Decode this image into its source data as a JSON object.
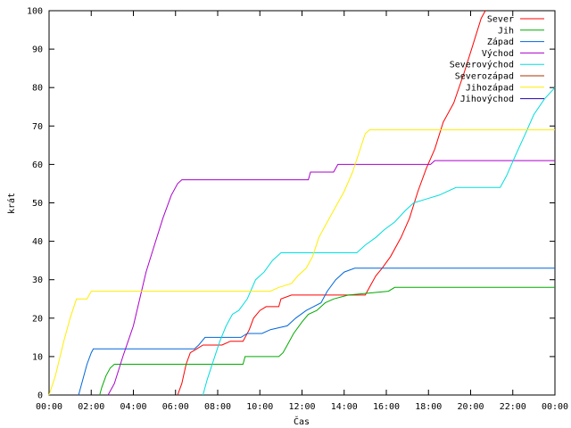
{
  "chart_data": {
    "type": "line",
    "xlabel": "Čas",
    "ylabel": "krát",
    "xlim": [
      0,
      24
    ],
    "ylim": [
      0,
      100
    ],
    "x_ticks": [
      {
        "value": 0,
        "label": "00:00"
      },
      {
        "value": 2,
        "label": "02:00"
      },
      {
        "value": 4,
        "label": "04:00"
      },
      {
        "value": 6,
        "label": "06:00"
      },
      {
        "value": 8,
        "label": "08:00"
      },
      {
        "value": 10,
        "label": "10:00"
      },
      {
        "value": 12,
        "label": "12:00"
      },
      {
        "value": 14,
        "label": "14:00"
      },
      {
        "value": 16,
        "label": "16:00"
      },
      {
        "value": 18,
        "label": "18:00"
      },
      {
        "value": 20,
        "label": "20:00"
      },
      {
        "value": 22,
        "label": "22:00"
      },
      {
        "value": 24,
        "label": "00:00"
      }
    ],
    "y_ticks": [
      0,
      10,
      20,
      30,
      40,
      50,
      60,
      70,
      80,
      90,
      100
    ],
    "grid": false,
    "legend_position": "top-right",
    "series": [
      {
        "name": "Sever",
        "color": "#ff0000",
        "points": [
          [
            6.1,
            0
          ],
          [
            6.3,
            3
          ],
          [
            6.5,
            8
          ],
          [
            6.7,
            11
          ],
          [
            7.0,
            12
          ],
          [
            7.3,
            13
          ],
          [
            8.2,
            13
          ],
          [
            8.6,
            14
          ],
          [
            9.2,
            14
          ],
          [
            9.5,
            17
          ],
          [
            9.7,
            20
          ],
          [
            10.0,
            22
          ],
          [
            10.3,
            23
          ],
          [
            10.9,
            23
          ],
          [
            11.0,
            25
          ],
          [
            11.5,
            26
          ],
          [
            15.0,
            26
          ],
          [
            15.2,
            28
          ],
          [
            15.5,
            31
          ],
          [
            15.8,
            33
          ],
          [
            16.2,
            36
          ],
          [
            16.7,
            41
          ],
          [
            17.1,
            46
          ],
          [
            17.5,
            53
          ],
          [
            17.9,
            59
          ],
          [
            18.3,
            64
          ],
          [
            18.7,
            71
          ],
          [
            19.2,
            76
          ],
          [
            19.7,
            84
          ],
          [
            20.1,
            91
          ],
          [
            20.5,
            98
          ],
          [
            20.7,
            100
          ]
        ]
      },
      {
        "name": "Jih",
        "color": "#00aa00",
        "points": [
          [
            2.4,
            0
          ],
          [
            2.5,
            2
          ],
          [
            2.7,
            5
          ],
          [
            2.9,
            7
          ],
          [
            3.1,
            8
          ],
          [
            9.2,
            8
          ],
          [
            9.3,
            10
          ],
          [
            10.9,
            10
          ],
          [
            11.1,
            11
          ],
          [
            11.3,
            13
          ],
          [
            11.6,
            16
          ],
          [
            12.0,
            19
          ],
          [
            12.3,
            21
          ],
          [
            12.7,
            22
          ],
          [
            13.1,
            24
          ],
          [
            13.5,
            25
          ],
          [
            14.2,
            26
          ],
          [
            16.1,
            27
          ],
          [
            16.4,
            28
          ],
          [
            24,
            28
          ]
        ]
      },
      {
        "name": "Západ",
        "color": "#0066dd",
        "points": [
          [
            1.4,
            0
          ],
          [
            1.6,
            4
          ],
          [
            1.8,
            8
          ],
          [
            2.0,
            11
          ],
          [
            2.1,
            12
          ],
          [
            6.9,
            12
          ],
          [
            7.1,
            13
          ],
          [
            7.4,
            15
          ],
          [
            9.1,
            15
          ],
          [
            9.4,
            16
          ],
          [
            10.1,
            16
          ],
          [
            10.5,
            17
          ],
          [
            11.3,
            18
          ],
          [
            11.7,
            20
          ],
          [
            12.2,
            22
          ],
          [
            12.9,
            24
          ],
          [
            13.2,
            27
          ],
          [
            13.6,
            30
          ],
          [
            14.0,
            32
          ],
          [
            14.5,
            33
          ],
          [
            24,
            33
          ]
        ]
      },
      {
        "name": "Východ",
        "color": "#aa00cc",
        "points": [
          [
            2.8,
            0
          ],
          [
            3.1,
            3
          ],
          [
            3.5,
            10
          ],
          [
            4.0,
            18
          ],
          [
            4.3,
            25
          ],
          [
            4.6,
            32
          ],
          [
            5.0,
            39
          ],
          [
            5.4,
            46
          ],
          [
            5.8,
            52
          ],
          [
            6.1,
            55
          ],
          [
            6.3,
            56
          ],
          [
            12.3,
            56
          ],
          [
            12.4,
            58
          ],
          [
            13.5,
            58
          ],
          [
            13.7,
            60
          ],
          [
            18.1,
            60
          ],
          [
            18.3,
            61
          ],
          [
            24,
            61
          ]
        ]
      },
      {
        "name": "Severovýchod",
        "color": "#00dddd",
        "points": [
          [
            7.3,
            0
          ],
          [
            7.5,
            4
          ],
          [
            7.8,
            9
          ],
          [
            8.1,
            14
          ],
          [
            8.4,
            18
          ],
          [
            8.7,
            21
          ],
          [
            9.0,
            22
          ],
          [
            9.4,
            25
          ],
          [
            9.8,
            30
          ],
          [
            10.2,
            32
          ],
          [
            10.6,
            35
          ],
          [
            11.0,
            37
          ],
          [
            14.6,
            37
          ],
          [
            15.0,
            39
          ],
          [
            15.5,
            41
          ],
          [
            15.9,
            43
          ],
          [
            16.4,
            45
          ],
          [
            16.9,
            48
          ],
          [
            17.3,
            50
          ],
          [
            17.9,
            51
          ],
          [
            18.5,
            52
          ],
          [
            19.3,
            54
          ],
          [
            21.4,
            54
          ],
          [
            21.7,
            57
          ],
          [
            22.1,
            62
          ],
          [
            22.6,
            68
          ],
          [
            23.0,
            73
          ],
          [
            23.5,
            77
          ],
          [
            24,
            80
          ]
        ]
      },
      {
        "name": "Severozápad",
        "color": "#aa3300",
        "points": []
      },
      {
        "name": "Jihozápad",
        "color": "#ffee00",
        "points": [
          [
            0,
            0
          ],
          [
            0.3,
            5
          ],
          [
            0.7,
            14
          ],
          [
            1.0,
            20
          ],
          [
            1.3,
            25
          ],
          [
            1.8,
            25
          ],
          [
            2.0,
            27
          ],
          [
            10.5,
            27
          ],
          [
            10.9,
            28
          ],
          [
            11.5,
            29
          ],
          [
            11.8,
            31
          ],
          [
            12.2,
            33
          ],
          [
            12.5,
            36
          ],
          [
            12.8,
            41
          ],
          [
            13.2,
            45
          ],
          [
            13.6,
            49
          ],
          [
            14.0,
            53
          ],
          [
            14.4,
            58
          ],
          [
            14.7,
            63
          ],
          [
            15.0,
            68
          ],
          [
            15.2,
            69
          ],
          [
            24,
            69
          ]
        ]
      },
      {
        "name": "Jihovýchod",
        "color": "#2200aa",
        "points": []
      }
    ]
  }
}
